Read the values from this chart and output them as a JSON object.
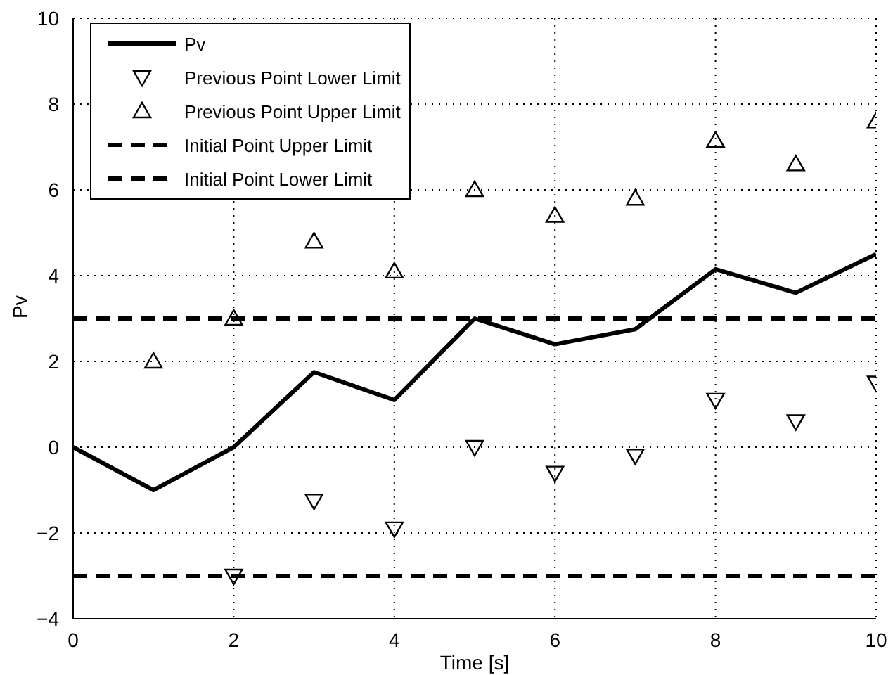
{
  "chart_data": {
    "type": "line",
    "xlabel": "Time [s]",
    "ylabel": "Pv",
    "xlim": [
      0,
      10
    ],
    "ylim": [
      -4,
      10
    ],
    "xticks": [
      0,
      2,
      4,
      6,
      8,
      10
    ],
    "yticks": [
      -4,
      -2,
      0,
      2,
      4,
      6,
      8,
      10
    ],
    "grid": true,
    "legend": "top left",
    "series": [
      {
        "name": "Pv",
        "color": "#000000",
        "line_style": "solid",
        "marker": "none",
        "x": [
          0,
          1,
          2,
          3,
          4,
          5,
          6,
          7,
          8,
          9,
          10
        ],
        "values": [
          0,
          -1,
          0,
          1.75,
          1.1,
          3,
          2.4,
          2.75,
          4.15,
          3.6,
          4.5
        ]
      },
      {
        "name": "Previous Point Lower Limit",
        "type": "scatter",
        "color": "#000000",
        "marker": "triangle-down",
        "x": [
          2,
          3,
          4,
          5,
          6,
          7,
          8,
          9,
          10
        ],
        "values": [
          -3,
          -1.25,
          -1.9,
          0,
          -0.6,
          -0.2,
          1.1,
          0.6,
          1.5
        ]
      },
      {
        "name": "Previous Point Upper Limit",
        "type": "scatter",
        "color": "#000000",
        "marker": "triangle",
        "x": [
          1,
          2,
          3,
          4,
          5,
          6,
          7,
          8,
          9,
          10
        ],
        "values": [
          2,
          3,
          4.8,
          4.1,
          6,
          5.4,
          5.8,
          7.15,
          6.6,
          7.6
        ]
      },
      {
        "name": "Initial Point Upper Limit",
        "color": "#000000",
        "line_style": "dashed",
        "marker": "none",
        "x": [
          0,
          10
        ],
        "values": [
          3,
          3
        ]
      },
      {
        "name": "Initial Point Lower Limit",
        "color": "#000000",
        "line_style": "dashed",
        "marker": "none",
        "x": [
          0,
          10
        ],
        "values": [
          -3,
          -3
        ]
      }
    ]
  }
}
